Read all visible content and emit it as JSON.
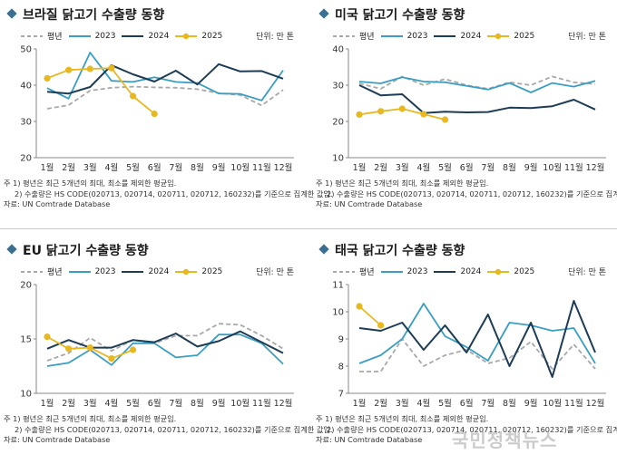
{
  "months": [
    "1월",
    "2월",
    "3월",
    "4월",
    "5월",
    "6월",
    "7월",
    "8월",
    "9월",
    "10월",
    "11월",
    "12월"
  ],
  "legend": [
    "평년",
    "2023",
    "2024",
    "2025"
  ],
  "unit": "단위: 만 톤",
  "notes": [
    "주 1) 평년은 최근 5개년의 최대, 최소를 제외한 평균임.",
    "2) 수출량은 HS CODE(020713, 020714, 020711, 020712, 160232)를 기준으로 집계한 값임.",
    "자료: UN Comtrade Database"
  ],
  "watermark": "국민정책뉴스",
  "colors": {
    "평년": "#a8a8a8",
    "2023": "#3a9ec2",
    "2024": "#1d3c55",
    "2025": "#e8b820",
    "accent": "#3b6f92"
  },
  "chart_data": [
    {
      "type": "line",
      "title": "브라질 닭고기 수출량 동향",
      "ylim": [
        20,
        50
      ],
      "yticks": [
        20,
        30,
        40,
        50
      ],
      "series": [
        {
          "name": "평년",
          "values": [
            33.5,
            34.5,
            38.5,
            39.3,
            39.6,
            39.4,
            39.3,
            38.9,
            37.8,
            37.3,
            34.4,
            38.7
          ]
        },
        {
          "name": "2023",
          "values": [
            39.2,
            36.3,
            49.0,
            41.2,
            40.9,
            42.2,
            40.9,
            40.6,
            37.7,
            37.6,
            35.8,
            44.1
          ]
        },
        {
          "name": "2024",
          "values": [
            38.2,
            37.7,
            39.5,
            45.5,
            43.0,
            41.0,
            44.0,
            40.2,
            45.8,
            43.8,
            43.9,
            41.8
          ]
        },
        {
          "name": "2025",
          "values": [
            41.9,
            44.2,
            44.5,
            44.7,
            37.0,
            32.1,
            null,
            null,
            null,
            null,
            null,
            null
          ]
        }
      ]
    },
    {
      "type": "line",
      "title": "미국 닭고기 수출량 동향",
      "ylim": [
        10,
        40
      ],
      "yticks": [
        10,
        20,
        30,
        40
      ],
      "series": [
        {
          "name": "평년",
          "values": [
            30.5,
            29.0,
            32.4,
            30.0,
            31.7,
            30.0,
            29.0,
            30.8,
            30.0,
            32.4,
            30.8,
            30.3
          ]
        },
        {
          "name": "2023",
          "values": [
            31.0,
            30.5,
            32.2,
            31.0,
            30.8,
            29.8,
            28.8,
            30.6,
            28.0,
            30.6,
            29.6,
            31.2
          ]
        },
        {
          "name": "2024",
          "values": [
            30.0,
            27.2,
            27.5,
            22.3,
            22.7,
            22.5,
            22.6,
            23.8,
            23.7,
            24.2,
            26.0,
            23.3
          ]
        },
        {
          "name": "2025",
          "values": [
            21.9,
            22.8,
            23.5,
            22.0,
            20.5,
            null,
            null,
            null,
            null,
            null,
            null,
            null
          ]
        }
      ]
    },
    {
      "type": "line",
      "title": "EU 닭고기 수출량 동향",
      "ylim": [
        10,
        20
      ],
      "yticks": [
        10,
        15,
        20
      ],
      "series": [
        {
          "name": "평년",
          "values": [
            13.0,
            13.7,
            15.1,
            13.9,
            14.9,
            14.6,
            15.3,
            15.3,
            16.4,
            16.3,
            15.3,
            14.1
          ]
        },
        {
          "name": "2023",
          "values": [
            12.5,
            12.8,
            14.0,
            12.6,
            14.6,
            14.6,
            13.3,
            13.5,
            15.4,
            15.4,
            14.6,
            12.7
          ]
        },
        {
          "name": "2024",
          "values": [
            14.1,
            14.9,
            14.2,
            14.2,
            14.9,
            14.7,
            15.5,
            14.3,
            14.8,
            15.7,
            14.7,
            13.7
          ]
        },
        {
          "name": "2025",
          "values": [
            15.2,
            14.1,
            14.2,
            13.2,
            14.0,
            null,
            null,
            null,
            null,
            null,
            null,
            null
          ]
        }
      ]
    },
    {
      "type": "line",
      "title": "태국 닭고기 수출량 동향",
      "ylim": [
        7,
        11
      ],
      "yticks": [
        7,
        8,
        9,
        10,
        11
      ],
      "series": [
        {
          "name": "평년",
          "values": [
            7.8,
            7.8,
            9.0,
            8.0,
            8.4,
            8.6,
            8.1,
            8.3,
            8.9,
            7.9,
            8.8,
            7.9
          ]
        },
        {
          "name": "2023",
          "values": [
            8.1,
            8.4,
            9.0,
            10.3,
            9.1,
            8.7,
            8.2,
            9.6,
            9.5,
            9.3,
            9.4,
            8.1
          ]
        },
        {
          "name": "2024",
          "values": [
            9.4,
            9.3,
            9.6,
            8.6,
            9.5,
            8.5,
            9.9,
            8.0,
            9.6,
            7.6,
            10.4,
            8.5
          ]
        },
        {
          "name": "2025",
          "values": [
            10.2,
            9.5,
            null,
            null,
            null,
            null,
            null,
            null,
            null,
            null,
            null,
            null
          ]
        }
      ]
    }
  ]
}
